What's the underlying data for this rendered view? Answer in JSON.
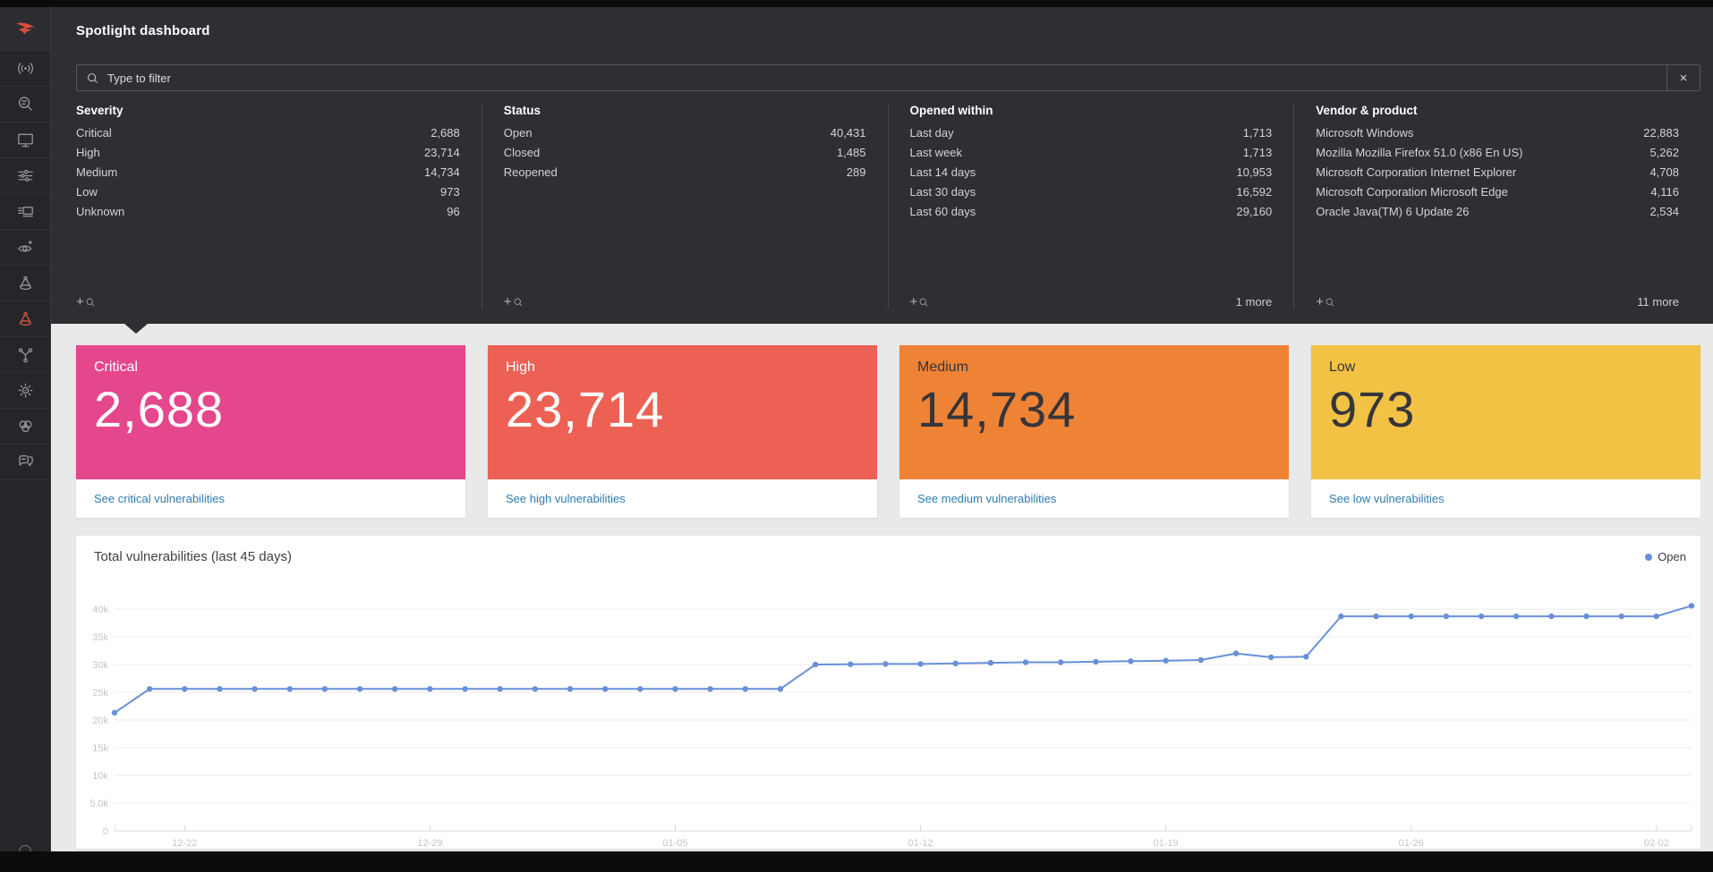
{
  "app": {
    "title": "Spotlight dashboard"
  },
  "sidebar": {
    "icons": [
      {
        "name": "crowdstrike-logo-icon",
        "active": false
      },
      {
        "name": "activity-icon",
        "active": false
      },
      {
        "name": "investigate-icon",
        "active": false
      },
      {
        "name": "hosts-icon",
        "active": false
      },
      {
        "name": "configuration-icon",
        "active": false
      },
      {
        "name": "dashboards-icon",
        "active": false
      },
      {
        "name": "discover-icon",
        "active": false
      },
      {
        "name": "spotlight-icon",
        "active": false
      },
      {
        "name": "spotlight-active-icon",
        "active": true
      },
      {
        "name": "identity-graph-icon",
        "active": false
      },
      {
        "name": "scan-icon",
        "active": false
      },
      {
        "name": "loops-icon",
        "active": false
      },
      {
        "name": "support-chat-icon",
        "active": false
      }
    ]
  },
  "search": {
    "placeholder": "Type to filter",
    "clear_label": "×"
  },
  "filters": {
    "add_filter_label": "+",
    "columns": [
      {
        "title": "Severity",
        "rows": [
          {
            "label": "Critical",
            "count": "2,688"
          },
          {
            "label": "High",
            "count": "23,714"
          },
          {
            "label": "Medium",
            "count": "14,734"
          },
          {
            "label": "Low",
            "count": "973"
          },
          {
            "label": "Unknown",
            "count": "96"
          }
        ],
        "more": ""
      },
      {
        "title": "Status",
        "rows": [
          {
            "label": "Open",
            "count": "40,431"
          },
          {
            "label": "Closed",
            "count": "1,485"
          },
          {
            "label": "Reopened",
            "count": "289"
          }
        ],
        "more": ""
      },
      {
        "title": "Opened within",
        "rows": [
          {
            "label": "Last day",
            "count": "1,713"
          },
          {
            "label": "Last week",
            "count": "1,713"
          },
          {
            "label": "Last 14 days",
            "count": "10,953"
          },
          {
            "label": "Last 30 days",
            "count": "16,592"
          },
          {
            "label": "Last 60 days",
            "count": "29,160"
          }
        ],
        "more": "1 more"
      },
      {
        "title": "Vendor & product",
        "rows": [
          {
            "label": "Microsoft Windows",
            "count": "22,883"
          },
          {
            "label": "Mozilla Mozilla Firefox 51.0 (x86 En US)",
            "count": "5,262"
          },
          {
            "label": "Microsoft Corporation Internet Explorer",
            "count": "4,708"
          },
          {
            "label": "Microsoft Corporation Microsoft Edge",
            "count": "4,116"
          },
          {
            "label": "Oracle Java(TM) 6 Update 26",
            "count": "2,534"
          }
        ],
        "more": "11 more"
      }
    ]
  },
  "cards": [
    {
      "label": "Critical",
      "value": "2,688",
      "link": "See critical vulnerabilities",
      "color": "#e5478c",
      "text_color": "#ffffff"
    },
    {
      "label": "High",
      "value": "23,714",
      "link": "See high vulnerabilities",
      "color": "#ec6154",
      "text_color": "#ffffff"
    },
    {
      "label": "Medium",
      "value": "14,734",
      "link": "See medium vulnerabilities",
      "color": "#ef8335",
      "text_color": "#35353b"
    },
    {
      "label": "Low",
      "value": "973",
      "link": "See low vulnerabilities",
      "color": "#f2c245",
      "text_color": "#35353b"
    }
  ],
  "link_color": "#2e7cb0",
  "chart_data": {
    "type": "line",
    "title": "Total vulnerabilities (last 45 days)",
    "legend": [
      {
        "label": "Open",
        "color": "#6890d8"
      }
    ],
    "legend_position": "top-right",
    "grid": true,
    "x_unit": "day",
    "x_tick_labels": [
      "12-22",
      "12-29",
      "01-05",
      "01-12",
      "01-19",
      "01-26",
      "02-02"
    ],
    "x_tick_indices": [
      2,
      9,
      16,
      23,
      30,
      37,
      44
    ],
    "y_ticks": [
      0,
      5000,
      10000,
      15000,
      20000,
      25000,
      30000,
      35000,
      40000
    ],
    "y_tick_labels": [
      "0",
      "5.0k",
      "10k",
      "15k",
      "20k",
      "25k",
      "30k",
      "35k",
      "40k"
    ],
    "ylim": [
      0,
      41300
    ],
    "series": [
      {
        "name": "Open",
        "color": "#6890d8",
        "values": [
          21300,
          25600,
          25600,
          25600,
          25600,
          25600,
          25600,
          25600,
          25600,
          25600,
          25600,
          25600,
          25600,
          25600,
          25600,
          25600,
          25600,
          25600,
          25600,
          25600,
          30000,
          30050,
          30100,
          30100,
          30200,
          30300,
          30400,
          30400,
          30500,
          30600,
          30700,
          30800,
          32000,
          31300,
          31400,
          38700,
          38700,
          38700,
          38700,
          38700,
          38700,
          38700,
          38700,
          38700,
          38700,
          40600
        ]
      }
    ]
  }
}
